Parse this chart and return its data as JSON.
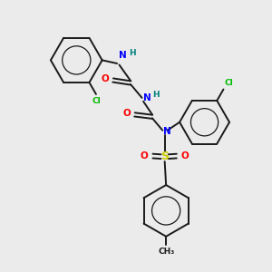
{
  "background_color": "#ebebeb",
  "bond_color": "#1a1a1a",
  "N_color": "#0000ff",
  "O_color": "#ff0000",
  "S_color": "#cccc00",
  "Cl_color": "#00bb00",
  "H_color": "#008080",
  "figsize": [
    3.0,
    3.0
  ],
  "dpi": 100,
  "xlim": [
    0,
    10
  ],
  "ylim": [
    0,
    10
  ]
}
